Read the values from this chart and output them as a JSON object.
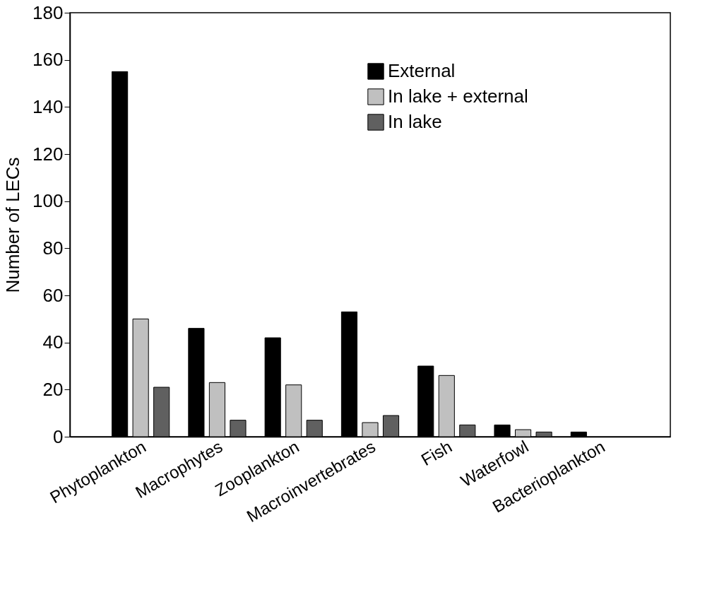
{
  "chart_data": {
    "type": "bar",
    "ylabel": "Number of LECs",
    "categories": [
      "Phytoplankton",
      "Macrophytes",
      "Zooplankton",
      "Macroinvertebrates",
      "Fish",
      "Waterfowl",
      "Bacterioplankton"
    ],
    "series": [
      {
        "name": "External",
        "color": "#000000",
        "values": [
          155,
          46,
          42,
          53,
          30,
          5,
          2
        ]
      },
      {
        "name": "In lake + external",
        "color": "#c0c0c0",
        "values": [
          50,
          23,
          22,
          6,
          26,
          3,
          null
        ]
      },
      {
        "name": "In lake",
        "color": "#606060",
        "values": [
          21,
          7,
          7,
          9,
          5,
          2,
          null
        ]
      }
    ],
    "ylim": [
      0,
      180
    ],
    "yticks": [
      0,
      20,
      40,
      60,
      80,
      100,
      120,
      140,
      160,
      180
    ],
    "grid": false,
    "legend": "top right"
  }
}
